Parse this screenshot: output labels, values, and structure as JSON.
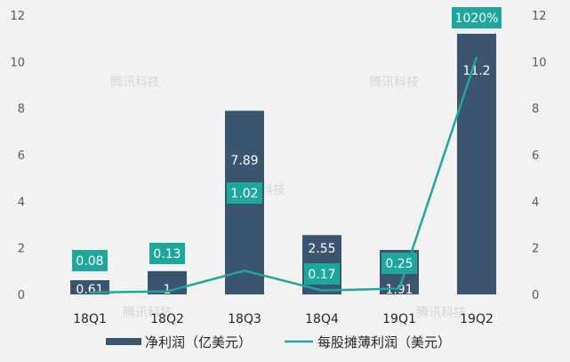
{
  "chart_data": {
    "type": "bar",
    "categories": [
      "18Q1",
      "18Q2",
      "18Q3",
      "18Q4",
      "19Q1",
      "19Q2"
    ],
    "series": [
      {
        "name": "净利润（亿美元）",
        "type": "bar",
        "axis": "left",
        "values": [
          0.61,
          1,
          7.89,
          2.55,
          1.91,
          11.2
        ],
        "labels": [
          "0.61",
          "1",
          "7.89",
          "2.55",
          "1.91",
          "11.2"
        ],
        "color": "#3b5470"
      },
      {
        "name": "每股摊薄利润（美元）",
        "type": "line",
        "axis": "right",
        "values": [
          0.08,
          0.13,
          1.02,
          0.17,
          0.25,
          10.2
        ],
        "labels": [
          "0.08",
          "0.13",
          "1.02",
          "0.17",
          "0.25",
          "1020%"
        ],
        "color": "#1ea79c"
      }
    ],
    "ylim": [
      0,
      12
    ],
    "y_ticks": [
      "0",
      "2",
      "4",
      "6",
      "8",
      "10",
      "12"
    ],
    "y2lim": [
      0,
      12
    ],
    "y2_ticks": [
      "0",
      "2",
      "4",
      "6",
      "8",
      "10",
      "12"
    ],
    "legend_position": "bottom",
    "grid": false,
    "watermark": "腾讯科技"
  }
}
